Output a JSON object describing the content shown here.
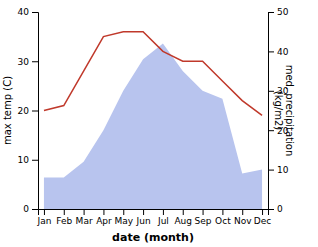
{
  "chart_data": {
    "type": "line",
    "categories": [
      "Jan",
      "Feb",
      "Mar",
      "Apr",
      "May",
      "Jun",
      "Jul",
      "Aug",
      "Sep",
      "Oct",
      "Nov",
      "Dec"
    ],
    "series": [
      {
        "type": "area",
        "color": "#b8c4ee",
        "axis": "y2",
        "values": [
          8,
          8,
          12,
          20,
          30,
          38,
          42,
          35,
          30,
          28,
          9,
          10
        ]
      },
      {
        "type": "line",
        "color": "#c0392b",
        "values": [
          20,
          21,
          28,
          35,
          36,
          36,
          32,
          30,
          30,
          26,
          22,
          19
        ]
      }
    ],
    "xlabel": "date (month)",
    "ylabel": "max temp (C)",
    "y2label": "med. precipitation\n(kg/m2)",
    "ylim": [
      0,
      40
    ],
    "yticks": [
      0,
      10,
      20,
      30,
      40
    ],
    "y2lim": [
      0,
      50
    ],
    "y2ticks": [
      0,
      10,
      20,
      30,
      40,
      50
    ],
    "grid": false
  }
}
